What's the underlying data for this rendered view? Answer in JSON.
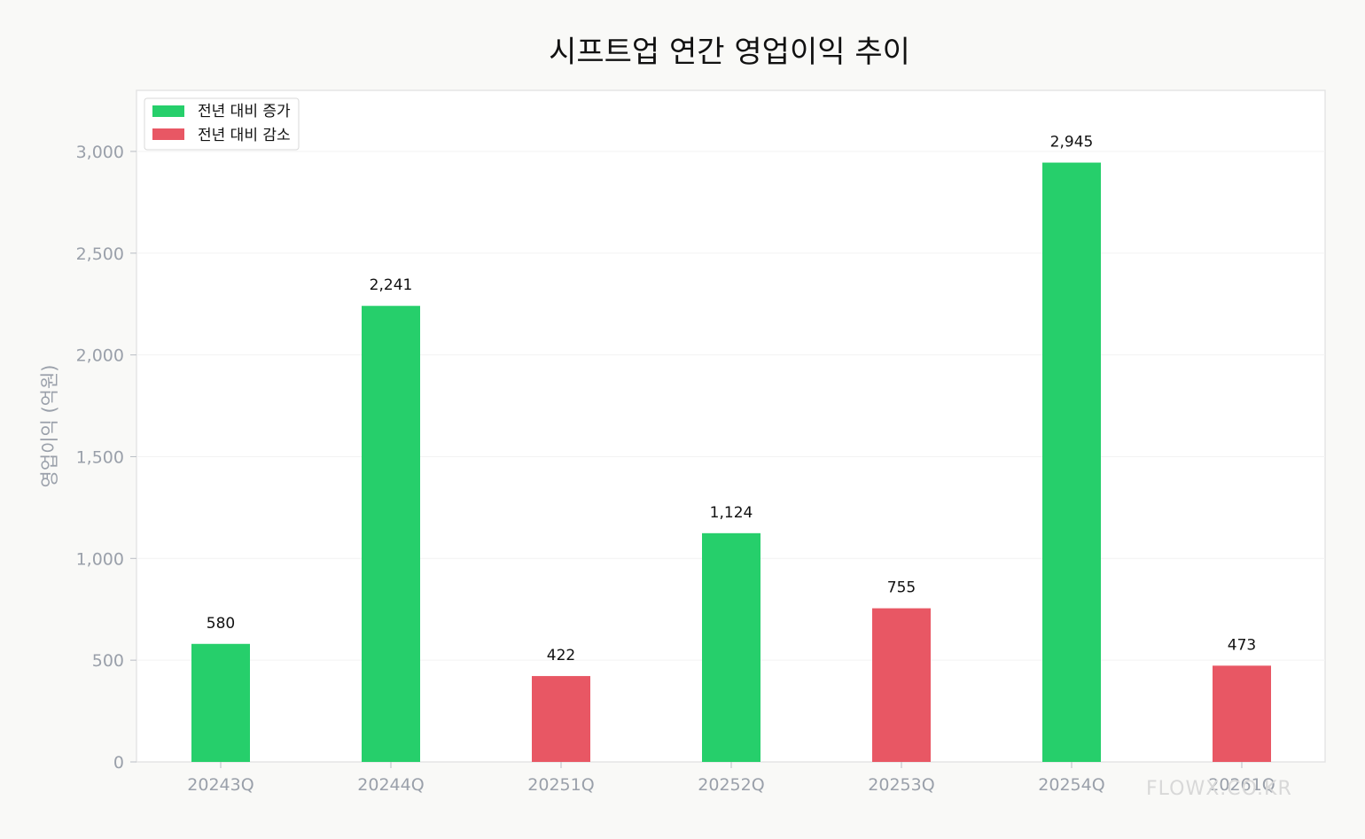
{
  "chart_data": {
    "type": "bar",
    "title": "시프트업 연간 영업이익 추이",
    "ylabel": "영업이익 (억원)",
    "xlabel": "",
    "categories": [
      "20243Q",
      "20244Q",
      "20251Q",
      "20252Q",
      "20253Q",
      "20254Q",
      "20261Q"
    ],
    "values": [
      580,
      2241,
      422,
      1124,
      755,
      2945,
      473
    ],
    "value_labels": [
      "580",
      "2,241",
      "422",
      "1,124",
      "755",
      "2,945",
      "473"
    ],
    "bar_status": [
      "increase",
      "increase",
      "decrease",
      "increase",
      "decrease",
      "increase",
      "decrease"
    ],
    "ylim": [
      0,
      3300
    ],
    "yticks": [
      0,
      500,
      1000,
      1500,
      2000,
      2500,
      3000
    ],
    "ytick_labels": [
      "0",
      "500",
      "1,000",
      "1,500",
      "2,000",
      "2,500",
      "3,000"
    ],
    "grid": true,
    "legend_position": "top-left",
    "legend": [
      {
        "key": "increase",
        "label": "전년 대비 증가",
        "color": "#26cf6b"
      },
      {
        "key": "decrease",
        "label": "전년 대비 감소",
        "color": "#e85764"
      }
    ]
  },
  "watermark": "FLOWX.CO.KR"
}
